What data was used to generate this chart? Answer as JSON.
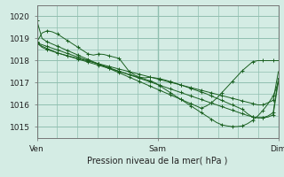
{
  "title": "Pression niveau de la mer( hPa )",
  "bg_color": "#d4ece4",
  "grid_color": "#90bfb0",
  "line_color": "#1a6020",
  "xtick_labels": [
    "Ven",
    "Sam",
    "Dim"
  ],
  "xtick_positions": [
    0,
    48,
    96
  ],
  "ylim": [
    1014.5,
    1020.5
  ],
  "xlim": [
    0,
    96
  ],
  "yticks": [
    1015,
    1016,
    1017,
    1018,
    1019,
    1020
  ],
  "series": [
    [
      1019.8,
      1019.0,
      1018.85,
      1018.75,
      1018.65,
      1018.55,
      1018.45,
      1018.35,
      1018.25,
      1018.15,
      1018.05,
      1017.95,
      1017.85,
      1017.75,
      1017.65,
      1017.55,
      1017.45,
      1017.35,
      1017.25,
      1017.15,
      1017.05,
      1016.95,
      1016.85,
      1016.75,
      1016.65,
      1016.55,
      1016.45,
      1016.35,
      1016.25,
      1016.15,
      1016.05,
      1015.95,
      1015.85,
      1015.95,
      1016.1,
      1016.3,
      1016.55,
      1016.8,
      1017.05,
      1017.3,
      1017.55,
      1017.75,
      1017.95,
      1018.0,
      1018.0,
      1018.0,
      1018.0,
      1018.0
    ],
    [
      1018.8,
      1018.65,
      1018.55,
      1018.45,
      1018.35,
      1018.28,
      1018.22,
      1018.16,
      1018.1,
      1018.04,
      1017.98,
      1017.92,
      1017.86,
      1017.8,
      1017.74,
      1017.68,
      1017.62,
      1017.56,
      1017.5,
      1017.44,
      1017.38,
      1017.32,
      1017.26,
      1017.2,
      1017.14,
      1017.08,
      1017.02,
      1016.96,
      1016.9,
      1016.84,
      1016.78,
      1016.72,
      1016.66,
      1016.6,
      1016.54,
      1016.48,
      1016.42,
      1016.36,
      1016.3,
      1016.24,
      1016.18,
      1016.12,
      1016.06,
      1016.0,
      1016.0,
      1016.1,
      1016.2,
      1017.5
    ],
    [
      1018.8,
      1018.72,
      1018.64,
      1018.56,
      1018.48,
      1018.4,
      1018.32,
      1018.24,
      1018.16,
      1018.08,
      1018.0,
      1017.92,
      1017.84,
      1017.76,
      1017.68,
      1017.6,
      1017.52,
      1017.44,
      1017.36,
      1017.28,
      1017.2,
      1017.12,
      1017.04,
      1016.96,
      1016.88,
      1016.8,
      1016.72,
      1016.64,
      1016.56,
      1016.48,
      1016.4,
      1016.32,
      1016.24,
      1016.16,
      1016.08,
      1016.0,
      1015.92,
      1015.84,
      1015.76,
      1015.68,
      1015.6,
      1015.52,
      1015.46,
      1015.42,
      1015.42,
      1015.5,
      1015.65,
      1017.2
    ],
    [
      1018.85,
      1019.25,
      1019.35,
      1019.3,
      1019.2,
      1019.05,
      1018.9,
      1018.75,
      1018.6,
      1018.45,
      1018.3,
      1018.25,
      1018.3,
      1018.28,
      1018.22,
      1018.16,
      1018.1,
      1017.8,
      1017.5,
      1017.35,
      1017.25,
      1017.22,
      1017.25,
      1017.22,
      1017.18,
      1017.12,
      1017.05,
      1016.98,
      1016.9,
      1016.82,
      1016.74,
      1016.66,
      1016.58,
      1016.5,
      1016.4,
      1016.3,
      1016.2,
      1016.1,
      1016.0,
      1015.9,
      1015.8,
      1015.6,
      1015.45,
      1015.42,
      1015.42,
      1015.45,
      1015.55,
      1017.05
    ],
    [
      1018.8,
      1018.6,
      1018.5,
      1018.42,
      1018.35,
      1018.28,
      1018.21,
      1018.14,
      1018.07,
      1018.0,
      1017.93,
      1017.86,
      1017.79,
      1017.72,
      1017.65,
      1017.58,
      1017.51,
      1017.44,
      1017.37,
      1017.3,
      1017.23,
      1017.16,
      1017.09,
      1017.0,
      1016.85,
      1016.7,
      1016.55,
      1016.4,
      1016.25,
      1016.1,
      1015.95,
      1015.8,
      1015.65,
      1015.5,
      1015.35,
      1015.2,
      1015.1,
      1015.05,
      1015.02,
      1015.02,
      1015.05,
      1015.15,
      1015.3,
      1015.5,
      1015.75,
      1016.05,
      1016.4,
      1017.0
    ]
  ]
}
